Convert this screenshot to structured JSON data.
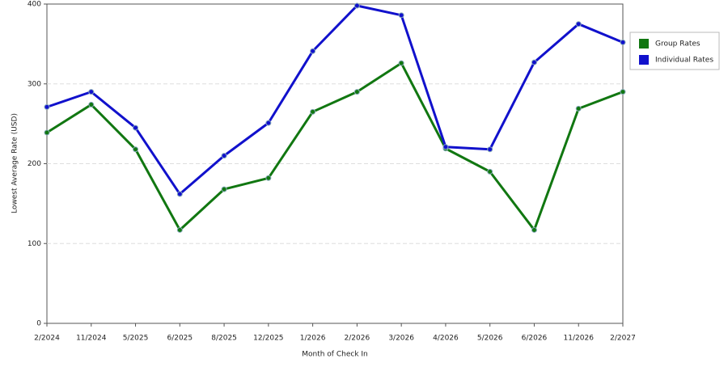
{
  "chart_data": {
    "type": "line",
    "x_label": "Month of Check In",
    "y_label": "Lowest Average Rate (USD)",
    "categories": [
      "2/2024",
      "11/2024",
      "5/2025",
      "6/2025",
      "8/2025",
      "12/2025",
      "1/2026",
      "2/2026",
      "3/2026",
      "4/2026",
      "5/2026",
      "6/2026",
      "11/2026",
      "2/2027"
    ],
    "series": [
      {
        "name": "Group Rates",
        "color": "#117711",
        "values": [
          239,
          274,
          218,
          117,
          168,
          182,
          265,
          290,
          326,
          219,
          190,
          117,
          269,
          290
        ]
      },
      {
        "name": "Individual Rates",
        "color": "#1111cc",
        "values": [
          271,
          290,
          245,
          162,
          210,
          251,
          341,
          398,
          386,
          221,
          218,
          327,
          375,
          352
        ]
      }
    ],
    "ylim": [
      0,
      400
    ],
    "yticks": [
      0,
      100,
      200,
      300,
      400
    ],
    "grid": true
  }
}
